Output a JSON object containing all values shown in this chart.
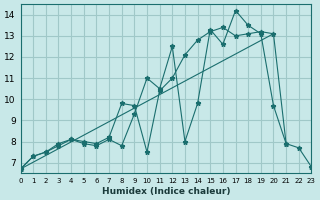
{
  "xlabel": "Humidex (Indice chaleur)",
  "bg_color": "#c8e8e8",
  "grid_color": "#a0c8c8",
  "line_color": "#1a6e6e",
  "xlim": [
    0,
    23
  ],
  "ylim": [
    6.5,
    14.5
  ],
  "xticks": [
    0,
    1,
    2,
    3,
    4,
    5,
    6,
    7,
    8,
    9,
    10,
    11,
    12,
    13,
    14,
    15,
    16,
    17,
    18,
    19,
    20,
    21,
    22,
    23
  ],
  "yticks": [
    7,
    8,
    9,
    10,
    11,
    12,
    13,
    14
  ],
  "series": [
    {
      "x": [
        0,
        1,
        2,
        3,
        4,
        5,
        6,
        7,
        8,
        9,
        10,
        11,
        12,
        13,
        14,
        15,
        16,
        17,
        18,
        19,
        20,
        21
      ],
      "y": [
        6.7,
        7.3,
        7.5,
        7.8,
        8.1,
        7.9,
        7.8,
        8.1,
        7.8,
        9.3,
        11.0,
        10.5,
        12.5,
        8.0,
        9.8,
        13.3,
        12.6,
        14.2,
        13.5,
        13.1,
        9.7,
        7.9
      ]
    },
    {
      "x": [
        0,
        1,
        2,
        3,
        4,
        5,
        6,
        7,
        8,
        9,
        10,
        11,
        12,
        13,
        14,
        15,
        16,
        17,
        18,
        19,
        20,
        21,
        22,
        23
      ],
      "y": [
        6.7,
        7.3,
        7.5,
        7.9,
        8.1,
        8.0,
        7.9,
        8.2,
        9.8,
        9.7,
        7.5,
        10.4,
        11.0,
        12.1,
        12.8,
        13.2,
        13.4,
        13.0,
        13.1,
        13.2,
        13.1,
        7.9,
        7.7,
        6.8
      ]
    },
    {
      "x": [
        0,
        20
      ],
      "y": [
        6.7,
        13.1
      ]
    }
  ]
}
